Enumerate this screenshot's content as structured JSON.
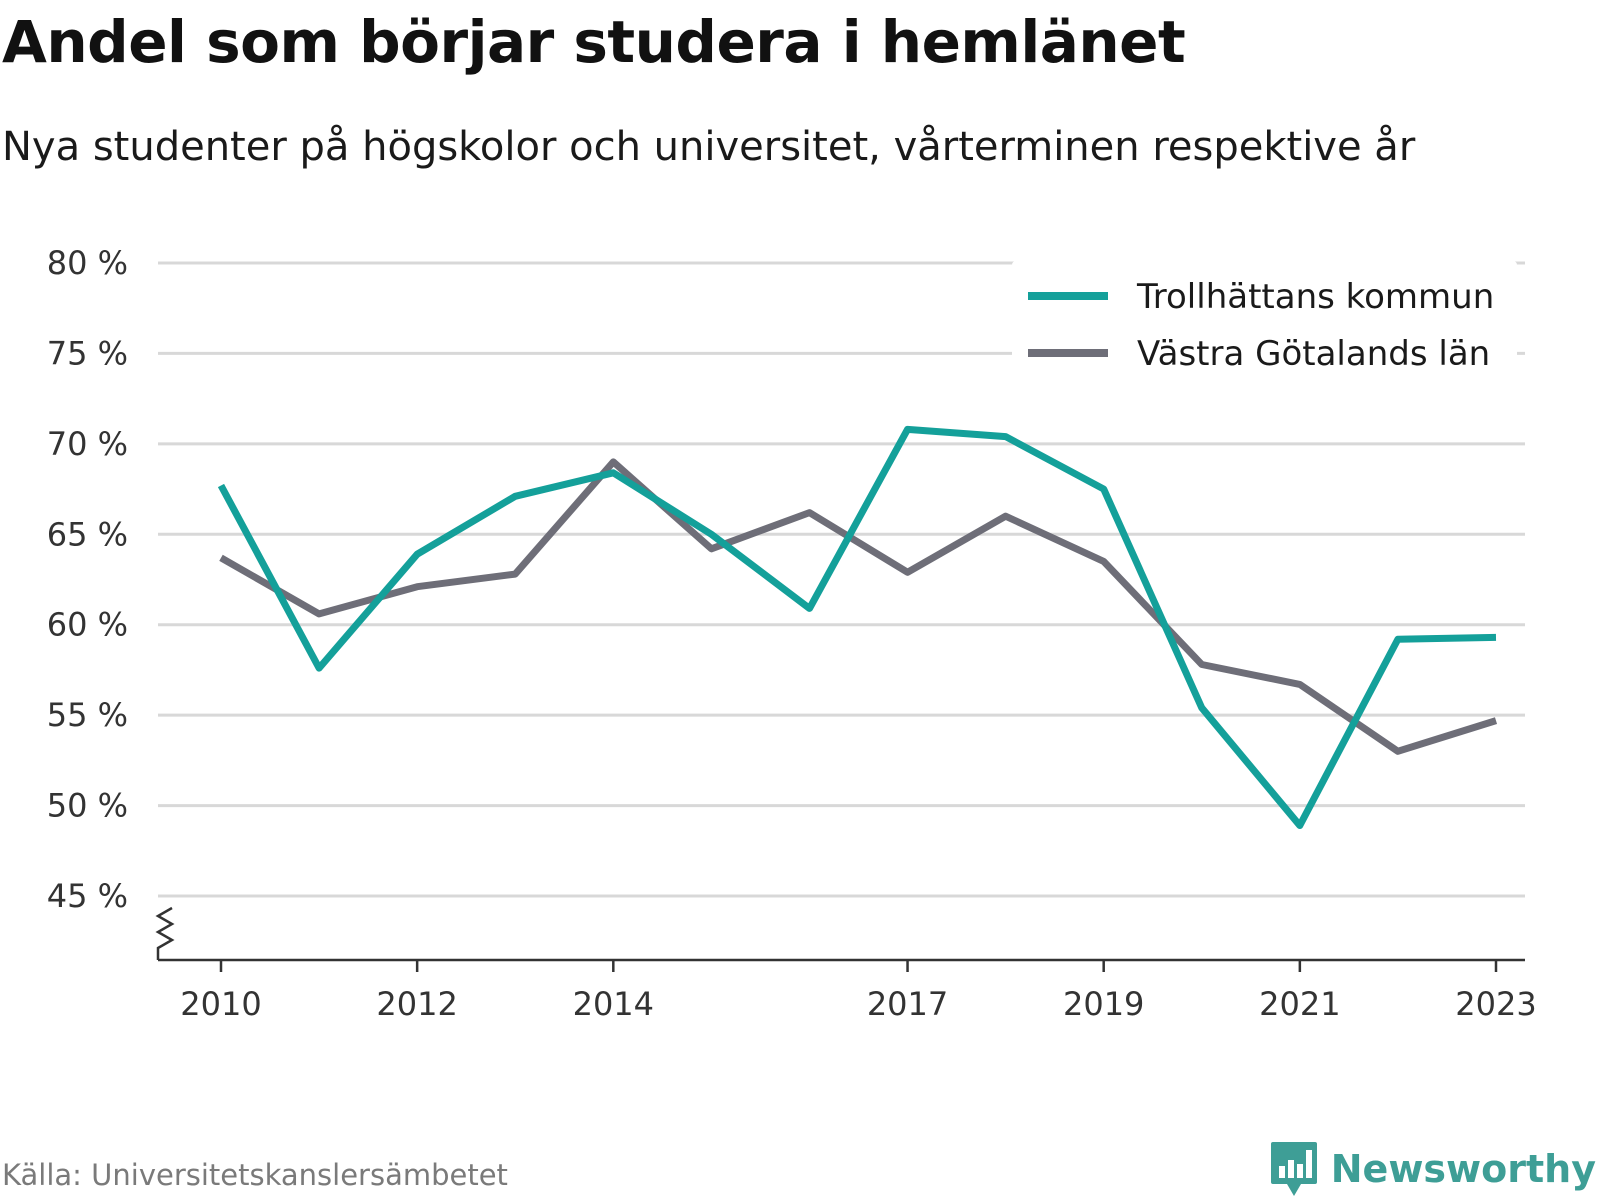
{
  "header": {
    "title": "Andel som börjar studera i hemlänet",
    "subtitle": "Nya studenter på högskolor och universitet, vårterminen respektive år"
  },
  "footer": {
    "source": "Källa: Universitetskanslersämbetet",
    "brand": "Newsworthy",
    "brand_icon": "bar-chart-speech-bubble-icon",
    "brand_color": "#3e9e96"
  },
  "chart_data": {
    "type": "line",
    "x": [
      2010,
      2011,
      2012,
      2013,
      2014,
      2015,
      2016,
      2017,
      2018,
      2019,
      2020,
      2021,
      2022,
      2023
    ],
    "series": [
      {
        "name": "Trollhättans kommun",
        "color": "#14a09a",
        "values": [
          67.7,
          57.6,
          63.9,
          67.1,
          68.4,
          65.0,
          60.9,
          70.8,
          70.4,
          67.5,
          55.4,
          48.9,
          59.2,
          59.3
        ]
      },
      {
        "name": "Västra Götalands län",
        "color": "#6e6e78",
        "values": [
          63.7,
          60.6,
          62.1,
          62.8,
          69.0,
          64.2,
          66.2,
          62.9,
          66.0,
          63.5,
          57.8,
          56.7,
          53.0,
          54.7
        ]
      }
    ],
    "ylim": [
      45,
      80
    ],
    "yticks": [
      45,
      50,
      55,
      60,
      65,
      70,
      75,
      80
    ],
    "ytick_labels": [
      "45 %",
      "50 %",
      "55 %",
      "60 %",
      "65 %",
      "70 %",
      "75 %",
      "80 %"
    ],
    "xticks": [
      2010,
      2012,
      2014,
      2017,
      2019,
      2021,
      2023
    ],
    "xtick_labels": [
      "2010",
      "2012",
      "2014",
      "2017",
      "2019",
      "2021",
      "2023"
    ],
    "y_axis_break": true,
    "grid": true,
    "legend_position": "top-right",
    "xlabel": "",
    "ylabel": ""
  }
}
